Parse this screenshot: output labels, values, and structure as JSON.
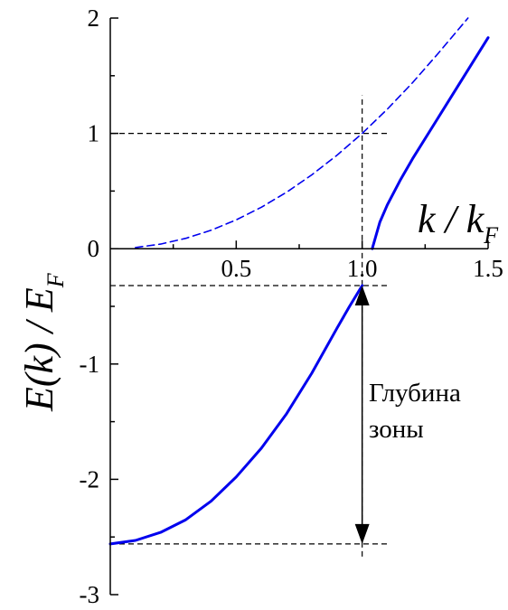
{
  "chart_data": {
    "type": "line",
    "title": "",
    "xlabel": {
      "main": "k / k",
      "subscript": "F"
    },
    "ylabel": {
      "main": "E(k) / E",
      "subscript": "F"
    },
    "xlim": [
      0,
      1.5
    ],
    "ylim": [
      -3,
      2
    ],
    "x_ticks": [
      "0.5",
      "1.0",
      "1.5"
    ],
    "y_ticks": [
      "2",
      "1",
      "0",
      "-1",
      "-2",
      "-3"
    ],
    "grid": false,
    "series": [
      {
        "style": "dashed",
        "color": "#0000ee",
        "x": [
          0.1,
          0.2,
          0.3,
          0.4,
          0.5,
          0.6,
          0.7,
          0.8,
          0.9,
          1.0,
          1.1,
          1.2,
          1.3,
          1.42
        ],
        "y": [
          0.01,
          0.04,
          0.09,
          0.16,
          0.25,
          0.36,
          0.49,
          0.64,
          0.81,
          1.0,
          1.21,
          1.44,
          1.69,
          2.0
        ]
      },
      {
        "style": "solid",
        "color": "#0000ee",
        "x": [
          0,
          0.1,
          0.2,
          0.3,
          0.4,
          0.5,
          0.6,
          0.7,
          0.8,
          0.9,
          0.95,
          1.0
        ],
        "y": [
          -2.56,
          -2.53,
          -2.46,
          -2.35,
          -2.19,
          -1.98,
          -1.73,
          -1.43,
          -1.08,
          -0.69,
          -0.5,
          -0.32
        ]
      },
      {
        "style": "solid",
        "color": "#0000ee",
        "x": [
          1.04,
          1.07,
          1.1,
          1.15,
          1.2,
          1.3,
          1.4,
          1.5
        ],
        "y": [
          0.0,
          0.23,
          0.38,
          0.59,
          0.78,
          1.13,
          1.48,
          1.83
        ]
      }
    ],
    "reference_lines": [
      {
        "orientation": "horizontal",
        "y": 1.0,
        "x_from": 0,
        "x_to": 1.11
      },
      {
        "orientation": "horizontal",
        "y": -0.32,
        "x_from": 0,
        "x_to": 1.11
      },
      {
        "orientation": "horizontal",
        "y": -2.56,
        "x_from": 0,
        "x_to": 1.11
      },
      {
        "orientation": "vertical",
        "x": 1.0,
        "y_from": -2.67,
        "y_to": 1.33
      }
    ],
    "arrow": {
      "x": 1.0,
      "y_from": -0.32,
      "y_to": -2.56
    },
    "annotation": [
      "Глубина",
      "зоны"
    ]
  }
}
